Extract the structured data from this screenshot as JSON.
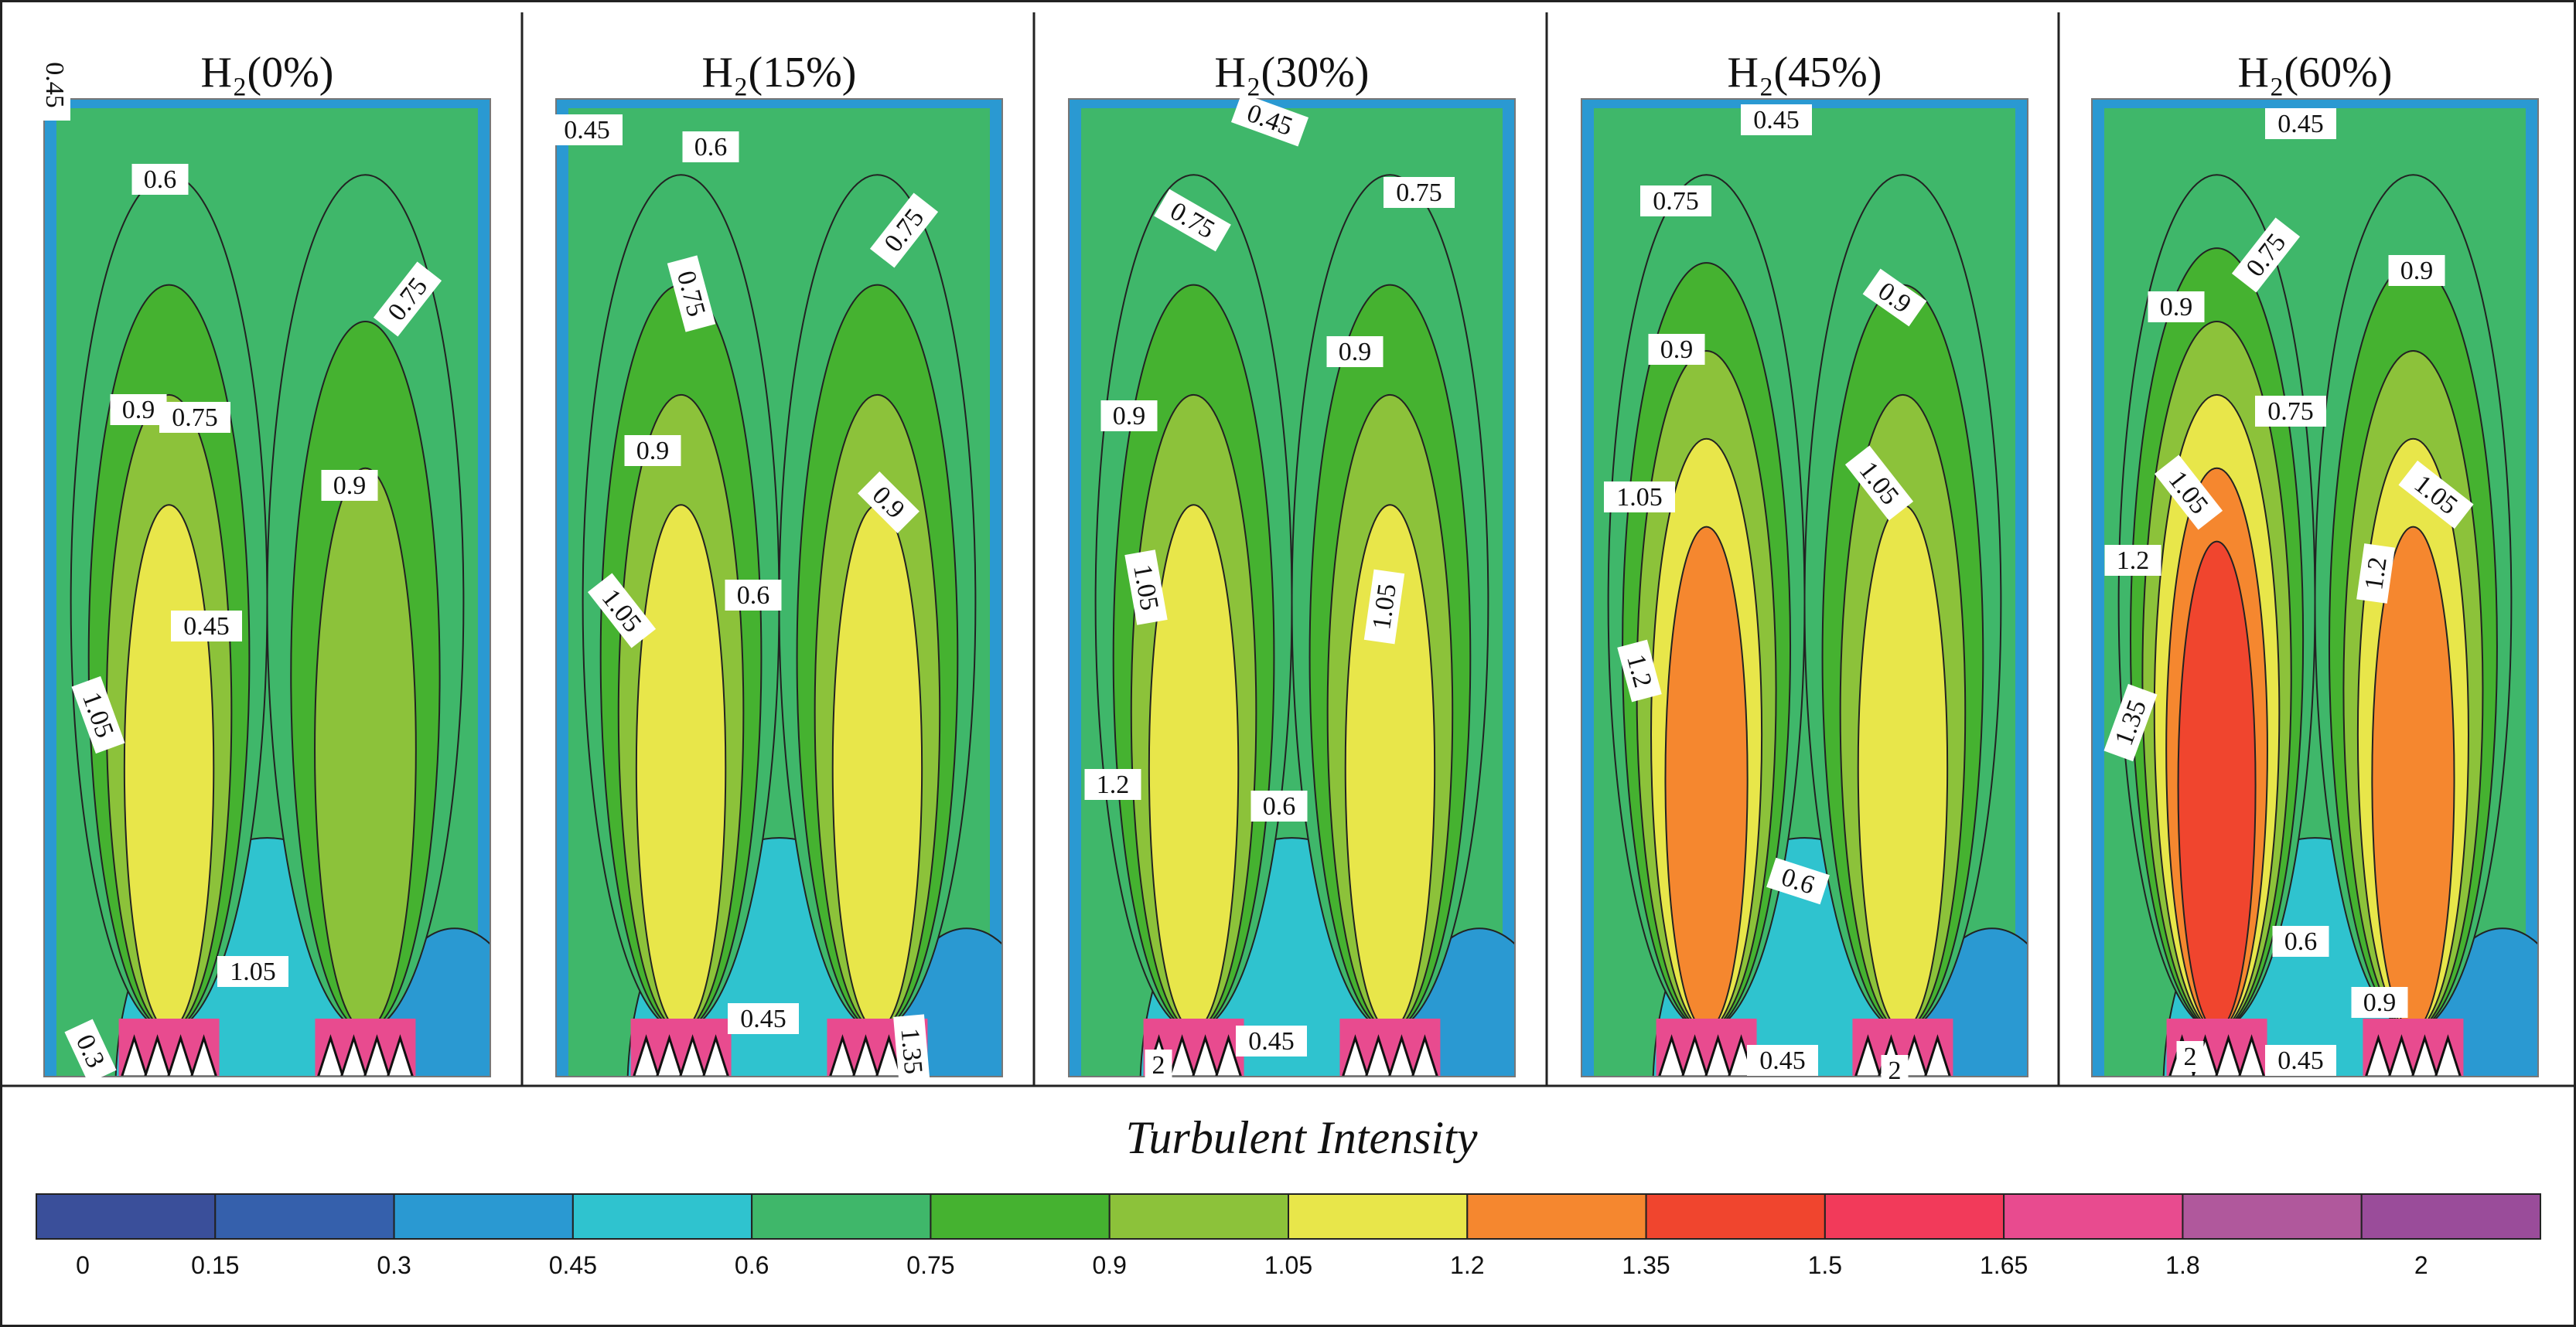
{
  "figure": {
    "colorbar": {
      "title": "Turbulent Intensity",
      "levels": [
        0,
        0.15,
        0.3,
        0.45,
        0.6,
        0.75,
        0.9,
        1.05,
        1.2,
        1.35,
        1.5,
        1.65,
        1.8,
        1.95,
        2.1
      ],
      "tick_labels": [
        "0",
        "0.15",
        "0.3",
        "0.45",
        "0.6",
        "0.75",
        "0.9",
        "1.05",
        "1.2",
        "1.35",
        "1.5",
        "1.65",
        "1.8",
        "2"
      ],
      "tick_values": [
        0,
        0.15,
        0.3,
        0.45,
        0.6,
        0.75,
        0.9,
        1.05,
        1.2,
        1.35,
        1.5,
        1.65,
        1.8,
        2
      ],
      "colors": [
        "#3a4f9a",
        "#3560ac",
        "#2a99d2",
        "#2fc3cf",
        "#3fb76a",
        "#45b230",
        "#8cc23a",
        "#e8e64a",
        "#f5872f",
        "#f0452e",
        "#f23a5a",
        "#e84b8f",
        "#b0589c",
        "#9a4c9a"
      ]
    },
    "panels": [
      {
        "title": "H₂(0%)",
        "left_jet": {
          "max_value": 1.12
        },
        "right_jet": {
          "max_value": 1.0
        },
        "contour_labels": [
          {
            "text": "0.45",
            "value": 0.45
          },
          {
            "text": "0.6",
            "value": 0.6
          },
          {
            "text": "0.75",
            "value": 0.75
          },
          {
            "text": "0.75",
            "value": 0.75
          },
          {
            "text": "0.9",
            "value": 0.9
          },
          {
            "text": "0.9",
            "value": 0.9
          },
          {
            "text": "1.05",
            "value": 1.05
          },
          {
            "text": "0.45",
            "value": 0.45
          },
          {
            "text": "1.05",
            "value": 1.05
          },
          {
            "text": "0.3",
            "value": 0.3
          }
        ]
      },
      {
        "title": "H₂(15%)",
        "left_jet": {
          "max_value": 1.15
        },
        "right_jet": {
          "max_value": 1.06
        },
        "contour_labels": [
          {
            "text": "0.45",
            "value": 0.45
          },
          {
            "text": "0.6",
            "value": 0.6
          },
          {
            "text": "0.75",
            "value": 0.75
          },
          {
            "text": "0.75",
            "value": 0.75
          },
          {
            "text": "0.9",
            "value": 0.9
          },
          {
            "text": "0.9",
            "value": 0.9
          },
          {
            "text": "1.05",
            "value": 1.05
          },
          {
            "text": "0.6",
            "value": 0.6
          },
          {
            "text": "0.45",
            "value": 0.45
          },
          {
            "text": "1.35",
            "value": 1.35
          }
        ]
      },
      {
        "title": "H₂(30%)",
        "left_jet": {
          "max_value": 1.2
        },
        "right_jet": {
          "max_value": 1.12
        },
        "contour_labels": [
          {
            "text": "0.45",
            "value": 0.45
          },
          {
            "text": "0.75",
            "value": 0.75
          },
          {
            "text": "0.75",
            "value": 0.75
          },
          {
            "text": "0.9",
            "value": 0.9
          },
          {
            "text": "0.9",
            "value": 0.9
          },
          {
            "text": "1.05",
            "value": 1.05
          },
          {
            "text": "1.05",
            "value": 1.05
          },
          {
            "text": "1.2",
            "value": 1.2
          },
          {
            "text": "0.6",
            "value": 0.6
          },
          {
            "text": "0.45",
            "value": 0.45
          },
          {
            "text": "2",
            "value": 2
          }
        ]
      },
      {
        "title": "H₂(45%)",
        "left_jet": {
          "max_value": 1.3
        },
        "right_jet": {
          "max_value": 1.15
        },
        "contour_labels": [
          {
            "text": "0.45",
            "value": 0.45
          },
          {
            "text": "0.75",
            "value": 0.75
          },
          {
            "text": "0.9",
            "value": 0.9
          },
          {
            "text": "0.9",
            "value": 0.9
          },
          {
            "text": "1.05",
            "value": 1.05
          },
          {
            "text": "1.05",
            "value": 1.05
          },
          {
            "text": "1.2",
            "value": 1.2
          },
          {
            "text": "0.6",
            "value": 0.6
          },
          {
            "text": "0.45",
            "value": 0.45
          },
          {
            "text": "2",
            "value": 2
          }
        ]
      },
      {
        "title": "H₂(60%)",
        "left_jet": {
          "max_value": 1.4
        },
        "right_jet": {
          "max_value": 1.3
        },
        "contour_labels": [
          {
            "text": "0.45",
            "value": 0.45
          },
          {
            "text": "0.75",
            "value": 0.75
          },
          {
            "text": "0.75",
            "value": 0.75
          },
          {
            "text": "0.9",
            "value": 0.9
          },
          {
            "text": "0.9",
            "value": 0.9
          },
          {
            "text": "1.05",
            "value": 1.05
          },
          {
            "text": "1.05",
            "value": 1.05
          },
          {
            "text": "1.2",
            "value": 1.2
          },
          {
            "text": "1.2",
            "value": 1.2
          },
          {
            "text": "1.35",
            "value": 1.35
          },
          {
            "text": "0.6",
            "value": 0.6
          },
          {
            "text": "0.9",
            "value": 0.9
          },
          {
            "text": "0.45",
            "value": 0.45
          },
          {
            "text": "2",
            "value": 2
          }
        ]
      }
    ]
  }
}
